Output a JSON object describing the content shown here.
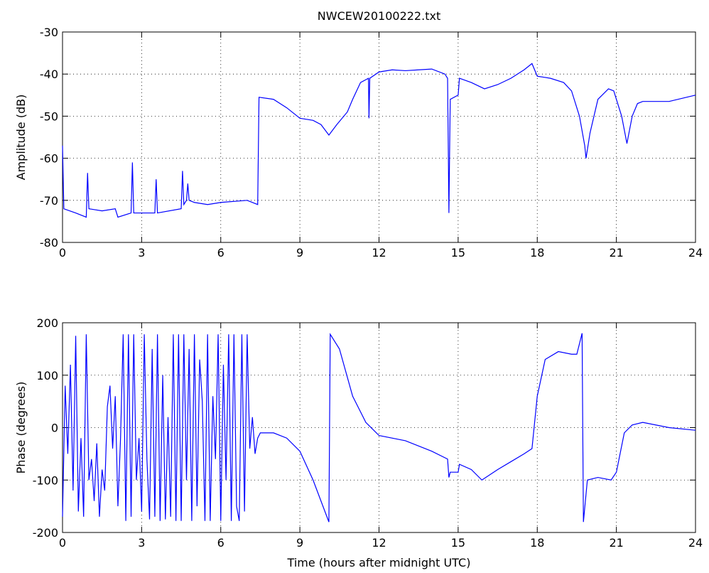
{
  "chart_data": [
    {
      "type": "line",
      "title": "NWCEW20100222.txt",
      "y_label": "Amplitude (dB)",
      "xlim": [
        0,
        24
      ],
      "xticks": [
        0,
        3,
        6,
        9,
        12,
        15,
        18,
        21,
        24
      ],
      "ylim": [
        -80,
        -30
      ],
      "yticks": [
        -80,
        -70,
        -60,
        -50,
        -40,
        -30
      ],
      "grid": true,
      "series": [
        {
          "color": "#0000ff",
          "x": [
            0,
            0.05,
            0.5,
            0.9,
            0.95,
            1.0,
            1.5,
            2.0,
            2.1,
            2.6,
            2.65,
            2.7,
            3.5,
            3.55,
            3.6,
            4.5,
            4.55,
            4.6,
            4.7,
            4.75,
            4.8,
            5.0,
            5.5,
            6.0,
            7.0,
            7.4,
            7.45,
            8.0,
            8.5,
            9.0,
            9.5,
            9.8,
            10.1,
            10.4,
            10.8,
            11.0,
            11.3,
            11.6,
            11.62,
            11.65,
            12.0,
            12.5,
            13.0,
            13.5,
            14.0,
            14.5,
            14.6,
            14.65,
            14.7,
            15.0,
            15.05,
            15.5,
            16.0,
            16.5,
            17.0,
            17.5,
            17.8,
            18.0,
            18.5,
            19.0,
            19.3,
            19.6,
            19.8,
            19.85,
            20.0,
            20.3,
            20.7,
            20.9,
            21.2,
            21.4,
            21.6,
            21.8,
            22.0,
            23.0,
            24
          ],
          "values": [
            -57,
            -72,
            -73,
            -74,
            -63.5,
            -72,
            -72.5,
            -72,
            -74,
            -73,
            -61,
            -73,
            -73,
            -65,
            -73,
            -72,
            -63,
            -71,
            -70,
            -66,
            -70,
            -70.5,
            -71,
            -70.5,
            -70,
            -71,
            -45.5,
            -46,
            -48,
            -50.5,
            -51,
            -52,
            -54.5,
            -52,
            -49,
            -46,
            -42,
            -41,
            -50.5,
            -41,
            -39.5,
            -39,
            -39.2,
            -39,
            -38.8,
            -40,
            -41,
            -73,
            -46,
            -45,
            -41,
            -42,
            -43.5,
            -42.5,
            -41,
            -39,
            -37.5,
            -40.5,
            -41,
            -42,
            -44,
            -50,
            -57,
            -60,
            -54,
            -46,
            -43.5,
            -44,
            -50,
            -56.5,
            -50,
            -47,
            -46.5,
            -46.5,
            -45
          ]
        }
      ]
    },
    {
      "type": "line",
      "x_label": "Time (hours after midnight UTC)",
      "y_label": "Phase (degrees)",
      "xlim": [
        0,
        24
      ],
      "xticks": [
        0,
        3,
        6,
        9,
        12,
        15,
        18,
        21,
        24
      ],
      "ylim": [
        -200,
        200
      ],
      "yticks": [
        -200,
        -100,
        0,
        100,
        200
      ],
      "grid": true,
      "series": [
        {
          "color": "#0000ff",
          "x": [
            0,
            0.1,
            0.2,
            0.3,
            0.4,
            0.5,
            0.6,
            0.7,
            0.8,
            0.9,
            1.0,
            1.1,
            1.2,
            1.3,
            1.4,
            1.5,
            1.6,
            1.7,
            1.8,
            1.9,
            2.0,
            2.1,
            2.2,
            2.3,
            2.4,
            2.5,
            2.6,
            2.7,
            2.8,
            2.9,
            3.0,
            3.1,
            3.2,
            3.3,
            3.4,
            3.5,
            3.6,
            3.7,
            3.8,
            3.9,
            4.0,
            4.1,
            4.2,
            4.3,
            4.4,
            4.5,
            4.6,
            4.7,
            4.8,
            4.9,
            5.0,
            5.1,
            5.2,
            5.3,
            5.4,
            5.5,
            5.6,
            5.7,
            5.8,
            5.9,
            6.0,
            6.1,
            6.2,
            6.3,
            6.4,
            6.5,
            6.6,
            6.7,
            6.8,
            6.9,
            7.0,
            7.1,
            7.2,
            7.3,
            7.4,
            7.5,
            8.0,
            8.5,
            9.0,
            9.5,
            10.1,
            10.15,
            10.5,
            11.0,
            11.5,
            12.0,
            13.0,
            14.0,
            14.6,
            14.65,
            14.7,
            15.0,
            15.05,
            15.5,
            15.9,
            16.5,
            17.0,
            17.5,
            17.8,
            18.0,
            18.3,
            18.8,
            19.3,
            19.5,
            19.7,
            19.75,
            19.9,
            20.3,
            20.8,
            21.0,
            21.3,
            21.6,
            22.0,
            23.0,
            24
          ],
          "values": [
            -170,
            80,
            -50,
            120,
            -120,
            175,
            -160,
            -20,
            -170,
            178,
            -100,
            -60,
            -140,
            -30,
            -170,
            -80,
            -120,
            40,
            80,
            -40,
            60,
            -150,
            -20,
            178,
            -178,
            178,
            -170,
            178,
            -100,
            -20,
            -160,
            178,
            -60,
            -175,
            150,
            -170,
            178,
            -178,
            100,
            -175,
            20,
            -170,
            178,
            -178,
            178,
            -178,
            178,
            -100,
            150,
            -178,
            178,
            -150,
            130,
            50,
            -178,
            178,
            -178,
            60,
            -60,
            178,
            -178,
            120,
            -100,
            178,
            -178,
            178,
            -150,
            -178,
            178,
            -160,
            178,
            -40,
            20,
            -50,
            -20,
            -10,
            -10,
            -20,
            -45,
            -100,
            -180,
            178,
            150,
            60,
            10,
            -15,
            -25,
            -45,
            -60,
            -95,
            -85,
            -85,
            -70,
            -80,
            -100,
            -80,
            -65,
            -50,
            -40,
            60,
            130,
            145,
            140,
            140,
            180,
            -180,
            -100,
            -95,
            -100,
            -85,
            -10,
            5,
            10,
            0,
            -5
          ]
        }
      ]
    }
  ]
}
